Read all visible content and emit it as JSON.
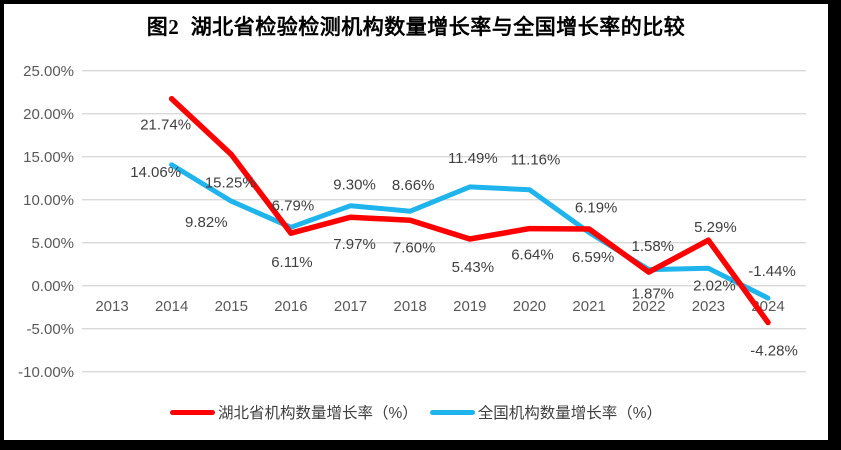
{
  "window": {
    "frame_color": "#000000",
    "background_color": "#ffffff"
  },
  "chart_data": {
    "type": "line",
    "title": "图2  湖北省检验检测机构数量增长率与全国增长率的比较",
    "categories": [
      "2013",
      "2014",
      "2015",
      "2016",
      "2017",
      "2018",
      "2019",
      "2020",
      "2021",
      "2022",
      "2023",
      "2024"
    ],
    "series": [
      {
        "name": "湖北省机构数量增长率（%）",
        "color": "#ff0000",
        "stroke_width": 5.5,
        "values": [
          null,
          21.74,
          15.25,
          6.11,
          7.97,
          7.6,
          5.43,
          6.64,
          6.59,
          1.58,
          5.29,
          -4.28
        ],
        "labels": [
          null,
          "21.74%",
          "15.25%",
          "6.11%",
          "7.97%",
          "7.60%",
          "5.43%",
          "6.64%",
          "6.59%",
          "1.58%",
          "5.29%",
          "-4.28%"
        ],
        "label_dx": [
          null,
          -6,
          -1,
          1,
          4,
          4,
          3,
          3,
          4,
          4,
          7,
          6
        ],
        "label_dy": [
          null,
          31,
          33,
          34,
          32,
          32,
          33,
          31,
          33,
          -21,
          -8,
          33
        ]
      },
      {
        "name": "全国机构数量增长率（%）",
        "color": "#1fb4ec",
        "stroke_width": 5,
        "values": [
          null,
          14.06,
          9.82,
          6.79,
          9.3,
          8.66,
          11.49,
          11.16,
          6.19,
          1.87,
          2.02,
          -1.44
        ],
        "labels": [
          null,
          "14.06%",
          "9.82%",
          "6.79%",
          "9.30%",
          "8.66%",
          "11.49%",
          "11.16%",
          "6.19%",
          "1.87%",
          "2.02%",
          "-1.44%"
        ],
        "label_dx": [
          null,
          -16,
          -25,
          2,
          4,
          3,
          3,
          6,
          7,
          4,
          6,
          4
        ],
        "label_dy": [
          null,
          12,
          26,
          -17,
          -16,
          -21,
          -24,
          -25,
          -20,
          29,
          22,
          -22
        ]
      }
    ],
    "y_axis": {
      "min": -10,
      "max": 25,
      "step": 5,
      "tick_labels": [
        "25.00%",
        "20.00%",
        "15.00%",
        "10.00%",
        "5.00%",
        "0.00%",
        "-5.00%",
        "-10.00%"
      ],
      "tick_values": [
        25,
        20,
        15,
        10,
        5,
        0,
        -5,
        -10
      ]
    },
    "grid": true,
    "grid_color": "#d9d9d9",
    "axis_text_color": "#595959",
    "data_label_color": "#3f3f3f",
    "legend_position": "bottom"
  }
}
